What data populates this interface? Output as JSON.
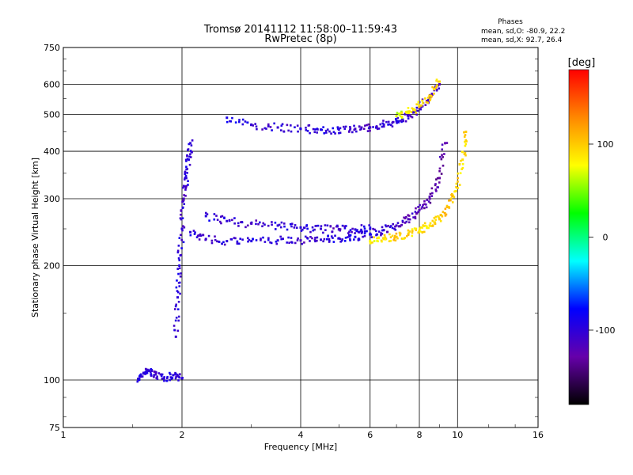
{
  "header": {
    "title_line1": "Tromsø 20141112 11:58:00–11:59:43",
    "title_line2": "RwPretec (8p)",
    "stats_title": "Phases",
    "stats_o": "mean, sd,O: -80.9, 22.2",
    "stats_x": "mean, sd,X:  92.7, 26.4"
  },
  "chart_data": {
    "type": "scatter",
    "xlabel": "Frequency [MHz]",
    "ylabel": "Stationary phase Virtual Height [km]",
    "xscale": "log",
    "yscale": "log",
    "xlim": [
      1,
      16
    ],
    "ylim": [
      75,
      750
    ],
    "x_ticks": [
      1,
      2,
      4,
      6,
      8,
      10,
      16
    ],
    "y_ticks": [
      75,
      100,
      200,
      300,
      400,
      500,
      600,
      750
    ],
    "grid": true,
    "colorbar": {
      "label": "[deg]",
      "min": -180,
      "max": 180,
      "ticks": [
        -100,
        0,
        100
      ],
      "colors": [
        "#000000",
        "#6600aa",
        "#0000ff",
        "#00ffff",
        "#00ff00",
        "#ffff00",
        "#ff8800",
        "#ff0000"
      ]
    },
    "series": [
      {
        "x": [
          1.55,
          1.6,
          1.65,
          1.7,
          1.8,
          1.9,
          2.0
        ],
        "y": [
          100,
          104,
          106,
          103,
          101,
          103,
          101
        ],
        "phase": [
          -100,
          -95,
          -100,
          -105,
          -100,
          -95,
          -100
        ]
      },
      {
        "x": [
          1.93,
          1.95,
          1.97,
          2.0,
          2.02,
          2.05,
          2.08,
          2.1
        ],
        "y": [
          130,
          165,
          200,
          250,
          300,
          340,
          380,
          420
        ],
        "phase": [
          -105,
          -100,
          -95,
          -100,
          -110,
          -100,
          -95,
          -100
        ]
      },
      {
        "x": [
          2.1,
          2.3,
          2.6,
          3.0,
          3.5,
          4.0,
          4.5,
          5.0,
          5.5,
          6.0,
          6.5,
          7.0,
          7.5,
          8.0,
          8.5,
          9.0,
          9.3
        ],
        "y": [
          245,
          235,
          232,
          232,
          233,
          233,
          234,
          236,
          238,
          242,
          248,
          255,
          265,
          280,
          300,
          340,
          420
        ],
        "phase": [
          -100,
          -105,
          -100,
          -95,
          -100,
          -110,
          -100,
          -95,
          -90,
          -100,
          -105,
          -110,
          -115,
          -120,
          -125,
          -130,
          -125
        ]
      },
      {
        "x": [
          2.3,
          2.6,
          3.0,
          3.5,
          4.0,
          4.5,
          5.0,
          5.5,
          6.0
        ],
        "y": [
          270,
          262,
          258,
          255,
          252,
          250,
          249,
          249,
          250
        ],
        "phase": [
          -95,
          -100,
          -110,
          -100,
          -95,
          -105,
          -110,
          -100,
          -95
        ]
      },
      {
        "x": [
          6.0,
          6.5,
          7.0,
          7.5,
          8.0,
          8.5,
          9.0,
          9.5,
          10.0,
          10.3,
          10.5
        ],
        "y": [
          232,
          235,
          238,
          242,
          247,
          255,
          265,
          285,
          320,
          380,
          450
        ],
        "phase": [
          80,
          90,
          100,
          95,
          85,
          90,
          100,
          105,
          95,
          90,
          100
        ]
      },
      {
        "x": [
          2.6,
          3.0,
          3.5,
          4.0,
          4.5,
          5.0,
          5.5,
          6.0,
          6.5,
          7.0,
          7.5,
          8.0,
          8.5,
          9.0
        ],
        "y": [
          490,
          470,
          462,
          458,
          456,
          456,
          458,
          462,
          470,
          480,
          495,
          520,
          555,
          600
        ],
        "phase": [
          -90,
          -100,
          -105,
          -100,
          -95,
          -100,
          -110,
          -115,
          -100,
          -95,
          -105,
          -110,
          -115,
          -120
        ]
      },
      {
        "x": [
          7.0,
          7.5,
          8.0,
          8.5,
          9.0
        ],
        "y": [
          495,
          505,
          525,
          560,
          610
        ],
        "phase": [
          70,
          80,
          90,
          100,
          95
        ]
      }
    ]
  }
}
